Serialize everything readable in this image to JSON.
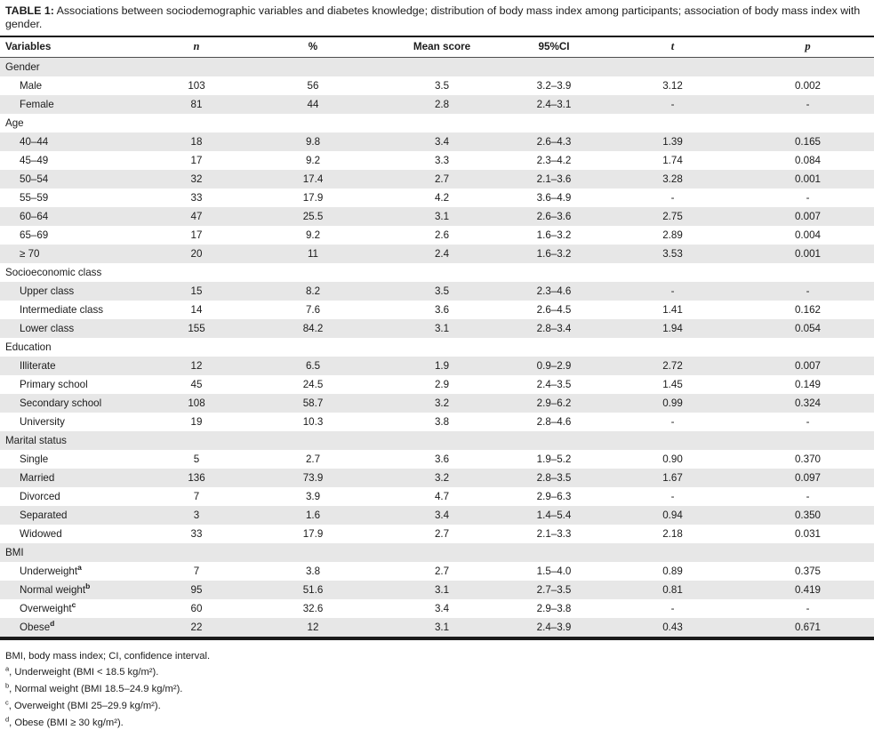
{
  "caption": {
    "label": "TABLE 1:",
    "text": " Associations between sociodemographic variables and diabetes knowledge; distribution of body mass index among participants; association of body mass index with gender."
  },
  "colors": {
    "row_stripe": "#e7e7e7",
    "rule_dark": "#1a1a1a",
    "text": "#1c1c1c"
  },
  "table": {
    "columns": [
      "Variables",
      "n",
      "%",
      "Mean score",
      "95%CI",
      "t",
      "p"
    ],
    "sections": [
      {
        "name": "Gender",
        "rows": [
          {
            "variable": "Male",
            "sup": "",
            "n": "103",
            "pct": "56",
            "mean": "3.5",
            "ci": "3.2–3.9",
            "t": "3.12",
            "p": "0.002"
          },
          {
            "variable": "Female",
            "sup": "",
            "n": "81",
            "pct": "44",
            "mean": "2.8",
            "ci": "2.4–3.1",
            "t": "-",
            "p": "-"
          }
        ]
      },
      {
        "name": "Age",
        "rows": [
          {
            "variable": "40–44",
            "sup": "",
            "n": "18",
            "pct": "9.8",
            "mean": "3.4",
            "ci": "2.6–4.3",
            "t": "1.39",
            "p": "0.165"
          },
          {
            "variable": "45–49",
            "sup": "",
            "n": "17",
            "pct": "9.2",
            "mean": "3.3",
            "ci": "2.3–4.2",
            "t": "1.74",
            "p": "0.084"
          },
          {
            "variable": "50–54",
            "sup": "",
            "n": "32",
            "pct": "17.4",
            "mean": "2.7",
            "ci": "2.1–3.6",
            "t": "3.28",
            "p": "0.001"
          },
          {
            "variable": "55–59",
            "sup": "",
            "n": "33",
            "pct": "17.9",
            "mean": "4.2",
            "ci": "3.6–4.9",
            "t": "-",
            "p": "-"
          },
          {
            "variable": "60–64",
            "sup": "",
            "n": "47",
            "pct": "25.5",
            "mean": "3.1",
            "ci": "2.6–3.6",
            "t": "2.75",
            "p": "0.007"
          },
          {
            "variable": "65–69",
            "sup": "",
            "n": "17",
            "pct": "9.2",
            "mean": "2.6",
            "ci": "1.6–3.2",
            "t": "2.89",
            "p": "0.004"
          },
          {
            "variable": "≥ 70",
            "sup": "",
            "n": "20",
            "pct": "11",
            "mean": "2.4",
            "ci": "1.6–3.2",
            "t": "3.53",
            "p": "0.001"
          }
        ]
      },
      {
        "name": "Socioeconomic class",
        "rows": [
          {
            "variable": "Upper class",
            "sup": "",
            "n": "15",
            "pct": "8.2",
            "mean": "3.5",
            "ci": "2.3–4.6",
            "t": "-",
            "p": "-"
          },
          {
            "variable": "Intermediate class",
            "sup": "",
            "n": "14",
            "pct": "7.6",
            "mean": "3.6",
            "ci": "2.6–4.5",
            "t": "1.41",
            "p": "0.162"
          },
          {
            "variable": "Lower class",
            "sup": "",
            "n": "155",
            "pct": "84.2",
            "mean": "3.1",
            "ci": "2.8–3.4",
            "t": "1.94",
            "p": "0.054"
          }
        ]
      },
      {
        "name": "Education",
        "rows": [
          {
            "variable": "Illiterate",
            "sup": "",
            "n": "12",
            "pct": "6.5",
            "mean": "1.9",
            "ci": "0.9–2.9",
            "t": "2.72",
            "p": "0.007"
          },
          {
            "variable": "Primary school",
            "sup": "",
            "n": "45",
            "pct": "24.5",
            "mean": "2.9",
            "ci": "2.4–3.5",
            "t": "1.45",
            "p": "0.149"
          },
          {
            "variable": "Secondary school",
            "sup": "",
            "n": "108",
            "pct": "58.7",
            "mean": "3.2",
            "ci": "2.9–6.2",
            "t": "0.99",
            "p": "0.324"
          },
          {
            "variable": "University",
            "sup": "",
            "n": "19",
            "pct": "10.3",
            "mean": "3.8",
            "ci": "2.8–4.6",
            "t": "-",
            "p": "-"
          }
        ]
      },
      {
        "name": "Marital status",
        "rows": [
          {
            "variable": "Single",
            "sup": "",
            "n": "5",
            "pct": "2.7",
            "mean": "3.6",
            "ci": "1.9–5.2",
            "t": "0.90",
            "p": "0.370"
          },
          {
            "variable": "Married",
            "sup": "",
            "n": "136",
            "pct": "73.9",
            "mean": "3.2",
            "ci": "2.8–3.5",
            "t": "1.67",
            "p": "0.097"
          },
          {
            "variable": "Divorced",
            "sup": "",
            "n": "7",
            "pct": "3.9",
            "mean": "4.7",
            "ci": "2.9–6.3",
            "t": "-",
            "p": "-"
          },
          {
            "variable": "Separated",
            "sup": "",
            "n": "3",
            "pct": "1.6",
            "mean": "3.4",
            "ci": "1.4–5.4",
            "t": "0.94",
            "p": "0.350"
          },
          {
            "variable": "Widowed",
            "sup": "",
            "n": "33",
            "pct": "17.9",
            "mean": "2.7",
            "ci": "2.1–3.3",
            "t": "2.18",
            "p": "0.031"
          }
        ]
      },
      {
        "name": "BMI",
        "rows": [
          {
            "variable": "Underweight",
            "sup": "a",
            "n": "7",
            "pct": "3.8",
            "mean": "2.7",
            "ci": "1.5–4.0",
            "t": "0.89",
            "p": "0.375"
          },
          {
            "variable": "Normal weight",
            "sup": "b",
            "n": "95",
            "pct": "51.6",
            "mean": "3.1",
            "ci": "2.7–3.5",
            "t": "0.81",
            "p": "0.419"
          },
          {
            "variable": "Overweight",
            "sup": "c",
            "n": "60",
            "pct": "32.6",
            "mean": "3.4",
            "ci": "2.9–3.8",
            "t": "-",
            "p": "-"
          },
          {
            "variable": "Obese",
            "sup": "d",
            "n": "22",
            "pct": "12",
            "mean": "3.1",
            "ci": "2.4–3.9",
            "t": "0.43",
            "p": "0.671"
          }
        ]
      }
    ]
  },
  "footnotes": [
    {
      "sup": "",
      "text": "BMI, body mass index; CI, confidence interval."
    },
    {
      "sup": "a",
      "text": ", Underweight (BMI < 18.5 kg/m²)."
    },
    {
      "sup": "b",
      "text": ", Normal weight (BMI 18.5–24.9 kg/m²)."
    },
    {
      "sup": "c",
      "text": ", Overweight (BMI 25–29.9 kg/m²)."
    },
    {
      "sup": "d",
      "text": ", Obese (BMI ≥ 30 kg/m²)."
    }
  ]
}
